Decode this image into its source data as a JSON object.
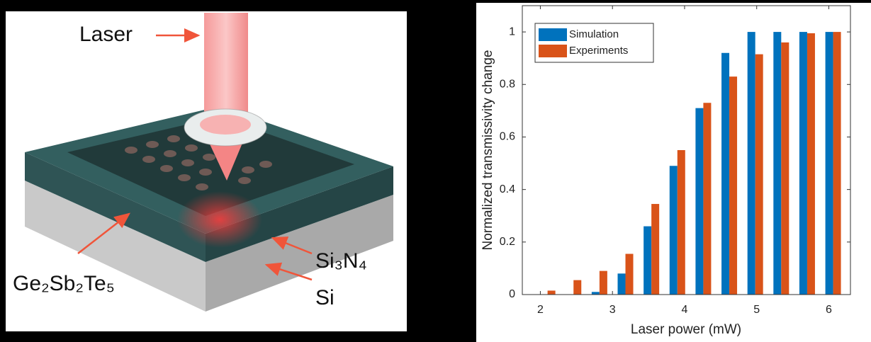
{
  "illustration": {
    "labels": [
      "Laser",
      "Ge₂Sb₂Te₅",
      "Si₃N₄",
      "Si"
    ]
  },
  "chart_data": {
    "type": "bar",
    "xlabel": "Laser power (mW)",
    "ylabel": "Normalized transmissivity change",
    "x": [
      2.1,
      2.46,
      2.82,
      3.18,
      3.54,
      3.9,
      4.26,
      4.62,
      4.98,
      5.34,
      5.7,
      6.06
    ],
    "series": [
      {
        "name": "Simulation",
        "color": "#0072BD",
        "values": [
          0,
          0,
          0.01,
          0.08,
          0.26,
          0.49,
          0.71,
          0.92,
          1,
          1,
          1,
          1
        ]
      },
      {
        "name": "Experiments",
        "color": "#D95319",
        "values": [
          0.015,
          0.055,
          0.09,
          0.155,
          0.345,
          0.55,
          0.73,
          0.83,
          0.915,
          0.96,
          0.995,
          1
        ]
      }
    ],
    "xlim": [
      1.75,
      6.3
    ],
    "ylim": [
      0,
      1.1
    ],
    "xticks": [
      2,
      3,
      4,
      5,
      6
    ],
    "yticks": [
      0,
      0.2,
      0.4,
      0.6,
      0.8,
      1
    ],
    "grid": false,
    "legend": "upper left"
  }
}
